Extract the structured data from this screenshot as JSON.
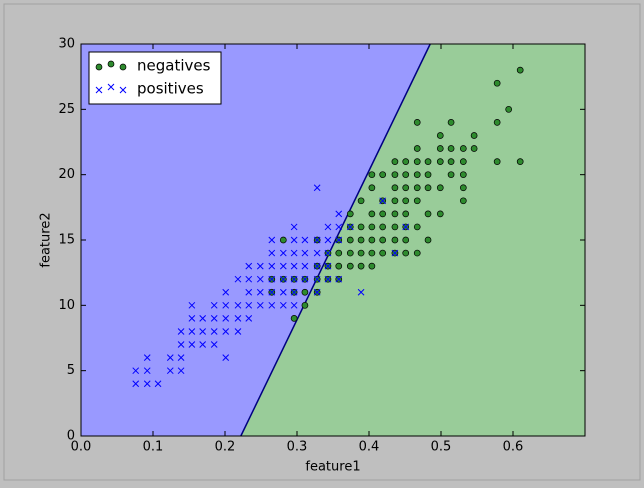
{
  "chart_data": {
    "type": "scatter",
    "xlabel": "feature1",
    "ylabel": "feature2",
    "xlim": [
      0,
      0.7
    ],
    "ylim": [
      0,
      30
    ],
    "xticks": [
      {
        "value": 0,
        "label": "0.0"
      },
      0.1,
      0.2,
      0.3,
      0.4,
      0.5,
      0.6
    ],
    "yticks": [
      0,
      5,
      10,
      15,
      20,
      25,
      30
    ],
    "legend": "upper left",
    "boundary": {
      "x": [
        0.222,
        0.485
      ],
      "y": [
        0,
        30
      ],
      "color": "#000080",
      "left_color": "#9999ff",
      "right_color": "#99cc99"
    },
    "series": [
      {
        "name": "negatives",
        "color": "#2e8b2e",
        "marker": "o",
        "x": [
          0.61,
          0.578,
          0.594,
          0.578,
          0.467,
          0.514,
          0.499,
          0.546,
          0.467,
          0.499,
          0.514,
          0.531,
          0.546,
          0.436,
          0.451,
          0.467,
          0.482,
          0.499,
          0.514,
          0.531,
          0.578,
          0.61,
          0.404,
          0.419,
          0.436,
          0.451,
          0.467,
          0.482,
          0.514,
          0.531,
          0.404,
          0.436,
          0.451,
          0.467,
          0.482,
          0.499,
          0.531,
          0.389,
          0.419,
          0.436,
          0.451,
          0.467,
          0.531,
          0.374,
          0.404,
          0.419,
          0.436,
          0.451,
          0.482,
          0.499,
          0.374,
          0.389,
          0.404,
          0.419,
          0.436,
          0.451,
          0.467,
          0.281,
          0.328,
          0.358,
          0.374,
          0.389,
          0.404,
          0.419,
          0.436,
          0.451,
          0.482,
          0.343,
          0.358,
          0.374,
          0.389,
          0.404,
          0.419,
          0.436,
          0.451,
          0.467,
          0.328,
          0.343,
          0.358,
          0.374,
          0.389,
          0.404,
          0.265,
          0.281,
          0.296,
          0.311,
          0.328,
          0.343,
          0.358,
          0.265,
          0.296,
          0.311,
          0.328,
          0.311,
          0.296
        ],
        "values": [
          28,
          27,
          25,
          24,
          24,
          24,
          23,
          23,
          22,
          22,
          22,
          22,
          22,
          21,
          21,
          21,
          21,
          21,
          21,
          21,
          21,
          21,
          20,
          20,
          20,
          20,
          20,
          20,
          20,
          20,
          19,
          19,
          19,
          19,
          19,
          19,
          19,
          18,
          18,
          18,
          18,
          18,
          18,
          17,
          17,
          17,
          17,
          17,
          17,
          17,
          16,
          16,
          16,
          16,
          16,
          16,
          16,
          15,
          15,
          15,
          15,
          15,
          15,
          15,
          15,
          15,
          15,
          14,
          14,
          14,
          14,
          14,
          14,
          14,
          14,
          14,
          13,
          13,
          13,
          13,
          13,
          13,
          12,
          12,
          12,
          12,
          12,
          12,
          12,
          11,
          11,
          11,
          11,
          10,
          9
        ]
      },
      {
        "name": "positives",
        "color": "#0000ff",
        "marker": "x",
        "x": [
          0.328,
          0.419,
          0.358,
          0.296,
          0.343,
          0.358,
          0.374,
          0.451,
          0.265,
          0.296,
          0.311,
          0.328,
          0.343,
          0.358,
          0.265,
          0.281,
          0.296,
          0.311,
          0.328,
          0.343,
          0.436,
          0.233,
          0.249,
          0.265,
          0.281,
          0.296,
          0.311,
          0.328,
          0.343,
          0.218,
          0.233,
          0.249,
          0.265,
          0.281,
          0.296,
          0.311,
          0.328,
          0.343,
          0.358,
          0.201,
          0.233,
          0.249,
          0.265,
          0.281,
          0.296,
          0.328,
          0.389,
          0.154,
          0.185,
          0.201,
          0.218,
          0.233,
          0.249,
          0.265,
          0.281,
          0.296,
          0.154,
          0.169,
          0.185,
          0.201,
          0.218,
          0.233,
          0.139,
          0.154,
          0.169,
          0.185,
          0.201,
          0.218,
          0.139,
          0.154,
          0.169,
          0.185,
          0.092,
          0.124,
          0.139,
          0.201,
          0.076,
          0.092,
          0.124,
          0.139,
          0.076,
          0.092,
          0.107
        ],
        "values": [
          19,
          18,
          17,
          16,
          16,
          16,
          16,
          16,
          15,
          15,
          15,
          15,
          15,
          15,
          14,
          14,
          14,
          14,
          14,
          14,
          14,
          13,
          13,
          13,
          13,
          13,
          13,
          13,
          13,
          12,
          12,
          12,
          12,
          12,
          12,
          12,
          12,
          12,
          12,
          11,
          11,
          11,
          11,
          11,
          11,
          11,
          11,
          10,
          10,
          10,
          10,
          10,
          10,
          10,
          10,
          10,
          9,
          9,
          9,
          9,
          9,
          9,
          8,
          8,
          8,
          8,
          8,
          8,
          7,
          7,
          7,
          7,
          6,
          6,
          6,
          6,
          5,
          5,
          5,
          5,
          4,
          4,
          4
        ]
      }
    ]
  }
}
